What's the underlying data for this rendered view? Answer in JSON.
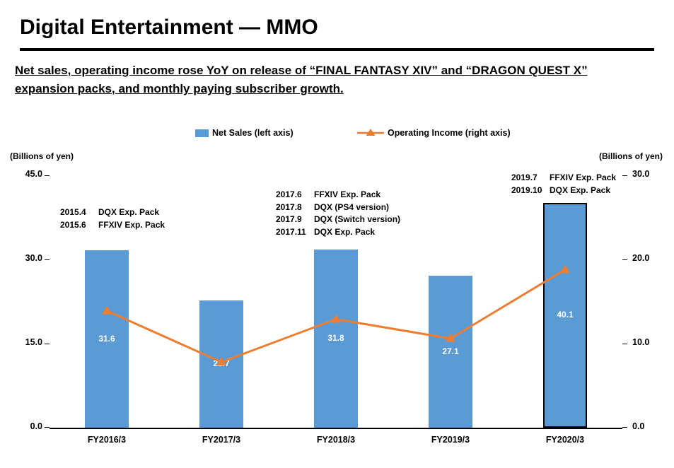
{
  "slide": {
    "title": "Digital Entertainment — MMO",
    "subtitle_line1": "Net sales, operating income rose YoY on release of “FINAL FANTASY XIV” and “DRAGON QUEST X”",
    "subtitle_line2": "expansion packs, and monthly paying subscriber growth."
  },
  "legend": {
    "net_sales": "Net Sales (left axis)",
    "operating_income": "Operating Income (right axis)"
  },
  "axes": {
    "left_caption": "(Billions of yen)",
    "right_caption": "(Billions of yen)"
  },
  "colors": {
    "bar_blue": "#5B9BD5",
    "line_orange": "#ED7D31"
  },
  "chart_data": {
    "type": "bar",
    "categories": [
      "FY2016/3",
      "FY2017/3",
      "FY2018/3",
      "FY2019/3",
      "FY2020/3"
    ],
    "series": [
      {
        "name": "Net Sales (left axis)",
        "type": "bar",
        "axis": "left",
        "values": [
          31.6,
          22.7,
          31.8,
          27.1,
          40.1
        ],
        "color": "#5B9BD5",
        "highlight_index": 4
      },
      {
        "name": "Operating Income (right axis)",
        "type": "line",
        "axis": "right",
        "values": [
          13.9,
          7.8,
          12.9,
          10.6,
          18.8
        ],
        "color": "#ED7D31"
      }
    ],
    "bar_labels": [
      "31.6",
      "22.7",
      "31.8",
      "27.1",
      "40.1"
    ],
    "left_axis": {
      "label": "(Billions of yen)",
      "min": 0,
      "max": 45,
      "ticks": [
        45,
        30,
        15,
        0
      ]
    },
    "right_axis": {
      "label": "(Billions of yen)",
      "min": 0,
      "max": 30,
      "ticks": [
        30,
        20,
        10,
        0
      ]
    },
    "grid": false,
    "legend_position": "top"
  },
  "annotations": {
    "release_2015": [
      {
        "date": "2015.4",
        "label": "DQX Exp. Pack"
      },
      {
        "date": "2015.6",
        "label": "FFXIV Exp. Pack"
      }
    ],
    "release_2017": [
      {
        "date": "2017.6",
        "label": "FFXIV Exp. Pack"
      },
      {
        "date": "2017.8",
        "label": "DQX (PS4 version)"
      },
      {
        "date": "2017.9",
        "label": "DQX (Switch version)"
      },
      {
        "date": "2017.11",
        "label": "DQX Exp. Pack"
      }
    ],
    "release_2019": [
      {
        "date": "2019.7",
        "label": "FFXIV Exp. Pack"
      },
      {
        "date": "2019.10",
        "label": "DQX Exp. Pack"
      }
    ]
  }
}
